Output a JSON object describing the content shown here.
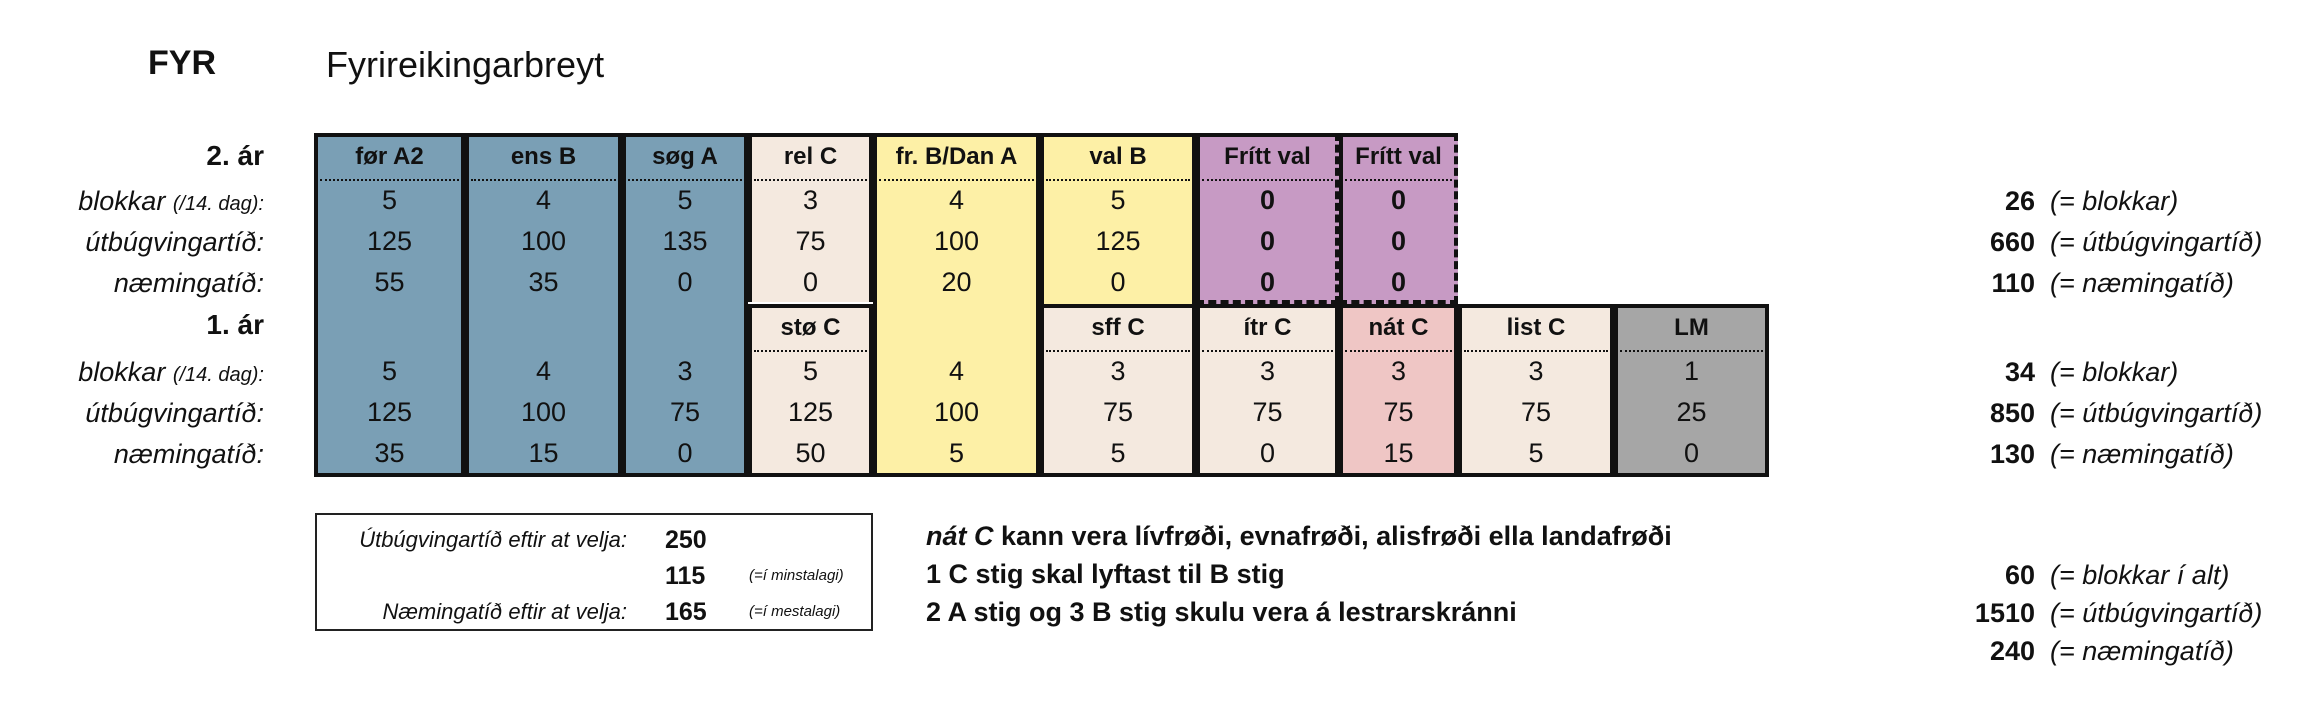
{
  "header": {
    "code": "FYR",
    "title": "Fyrireikingarbreyt"
  },
  "labels": {
    "year2": "2. ár",
    "year1": "1. ár",
    "blokkar": "blokkar",
    "blokkar_sub": "(/14. dag):",
    "utbugvingartid": "útbúgvingartíð:",
    "nemingatid": "næmingatíð:"
  },
  "year2": {
    "headers": [
      "før A2",
      "ens B",
      "søg A",
      "rel C",
      "fr. B/Dan A",
      "val B",
      "Frítt val",
      "Frítt val"
    ],
    "blokkar": [
      "5",
      "4",
      "5",
      "3",
      "4",
      "5",
      "0",
      "0"
    ],
    "utbugvingartid": [
      "125",
      "100",
      "135",
      "75",
      "100",
      "125",
      "0",
      "0"
    ],
    "nemingatid": [
      "55",
      "35",
      "0",
      "0",
      "20",
      "0",
      "0",
      "0"
    ]
  },
  "year1": {
    "headers": [
      "",
      "",
      "",
      "stø C",
      "",
      "sff C",
      "ítr C",
      "nát C",
      "list C",
      "LM"
    ],
    "blokkar": [
      "5",
      "4",
      "3",
      "5",
      "4",
      "3",
      "3",
      "3",
      "3",
      "1"
    ],
    "utbugvingartid": [
      "125",
      "100",
      "75",
      "125",
      "100",
      "75",
      "75",
      "75",
      "75",
      "25"
    ],
    "nemingatid": [
      "35",
      "15",
      "0",
      "50",
      "5",
      "5",
      "0",
      "15",
      "5",
      "0"
    ]
  },
  "totals": {
    "year2": [
      {
        "value": "26",
        "text": "(= blokkar)"
      },
      {
        "value": "660",
        "text": "(= útbúgvingartíð)"
      },
      {
        "value": "110",
        "text": "(= næmingatíð)"
      }
    ],
    "year1": [
      {
        "value": "34",
        "text": "(= blokkar)"
      },
      {
        "value": "850",
        "text": "(= útbúgvingartíð)"
      },
      {
        "value": "130",
        "text": "(= næmingatíð)"
      }
    ],
    "all": [
      {
        "value": "60",
        "text": "(= blokkar í alt)"
      },
      {
        "value": "1510",
        "text": "(= útbúgvingartíð)"
      },
      {
        "value": "240",
        "text": "(= næmingatíð)"
      }
    ]
  },
  "summary_box": {
    "utb_label": "Útbúgvingartíð eftir at velja:",
    "utb_value": "250",
    "min_value": "115",
    "min_note": "(=í minstalagi)",
    "nem_label": "Næmingatíð eftir at velja:",
    "nem_value": "165",
    "max_note": "(=í mestalagi)"
  },
  "notes": {
    "line1_em": "nát C",
    "line1_rest": "kann vera lívfrøði, evnafrøði, alisfrøði ella landafrøði",
    "line2": "1 C stig skal lyftast til B stig",
    "line3": "2 A stig og 3 B stig skulu vera á lestrarskránni"
  },
  "colors": {
    "blue": "#7a9fb5",
    "beige": "#f4e9df",
    "yellow": "#fdf0a6",
    "purple": "#c79ac4",
    "pink": "#efc6c5",
    "gray": "#a6a6a6"
  }
}
